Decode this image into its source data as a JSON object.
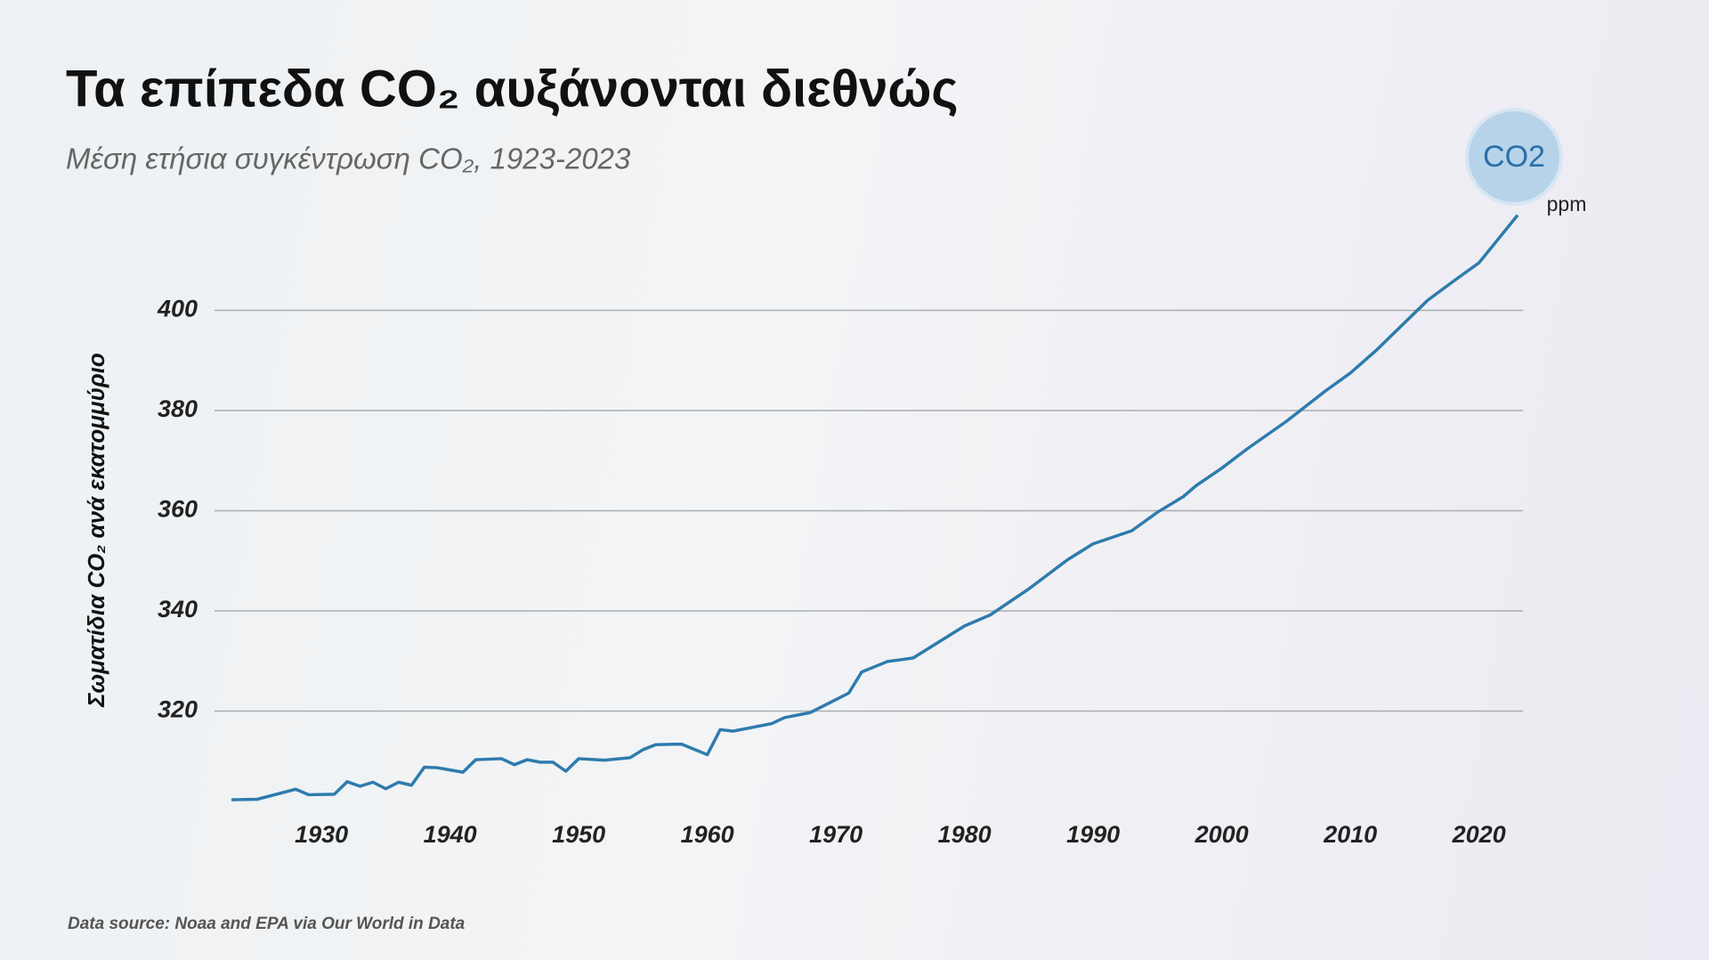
{
  "chart_data": {
    "type": "line",
    "title": "Τα επίπεδα CO₂  αυξάνονται διεθνώς",
    "subtitle": "Μέση ετήσια συγκέντρωση CO₂, 1923-2023",
    "y_label": "Σωματίδια CO₂ ανά εκατομμύριο",
    "source": "Data source: Noaa and EPA via Our World in Data",
    "badge": "CO2",
    "unit": "ppm",
    "x": [
      1923,
      1925,
      1928,
      1929,
      1931,
      1932,
      1933,
      1934,
      1935,
      1936,
      1937,
      1938,
      1939,
      1941,
      1942,
      1944,
      1945,
      1946,
      1947,
      1948,
      1949,
      1950,
      1952,
      1954,
      1955,
      1956,
      1958,
      1960,
      1961,
      1962,
      1965,
      1966,
      1968,
      1970,
      1971,
      1972,
      1974,
      1976,
      1978,
      1980,
      1982,
      1985,
      1988,
      1990,
      1993,
      1995,
      1997,
      1998,
      2000,
      2002,
      2005,
      2008,
      2010,
      2012,
      2015,
      2016,
      2018,
      2020,
      2023
    ],
    "series": [
      {
        "name": "CO2",
        "color": "#2e7bad",
        "values": [
          302.3,
          302.4,
          304.4,
          303.3,
          303.4,
          305.9,
          305.0,
          305.8,
          304.5,
          305.8,
          305.2,
          308.8,
          308.7,
          307.8,
          310.3,
          310.5,
          309.3,
          310.3,
          309.8,
          309.8,
          308.0,
          310.5,
          310.2,
          310.7,
          312.3,
          313.3,
          313.4,
          311.3,
          316.3,
          316.0,
          317.5,
          318.7,
          319.7,
          322.3,
          323.6,
          327.8,
          329.9,
          330.6,
          333.8,
          337.0,
          339.2,
          344.4,
          350.2,
          353.4,
          356.0,
          359.7,
          362.8,
          365.0,
          368.5,
          372.4,
          377.8,
          383.8,
          387.5,
          392.0,
          399.5,
          402.0,
          405.8,
          409.5,
          419.0
        ]
      }
    ],
    "xlim": [
      1923,
      2023
    ],
    "ylim": [
      300,
      420
    ],
    "xticks": [
      1930,
      1940,
      1950,
      1960,
      1970,
      1980,
      1990,
      2000,
      2010,
      2020
    ],
    "yticks": [
      320,
      340,
      360,
      380,
      400
    ],
    "grid": true
  }
}
